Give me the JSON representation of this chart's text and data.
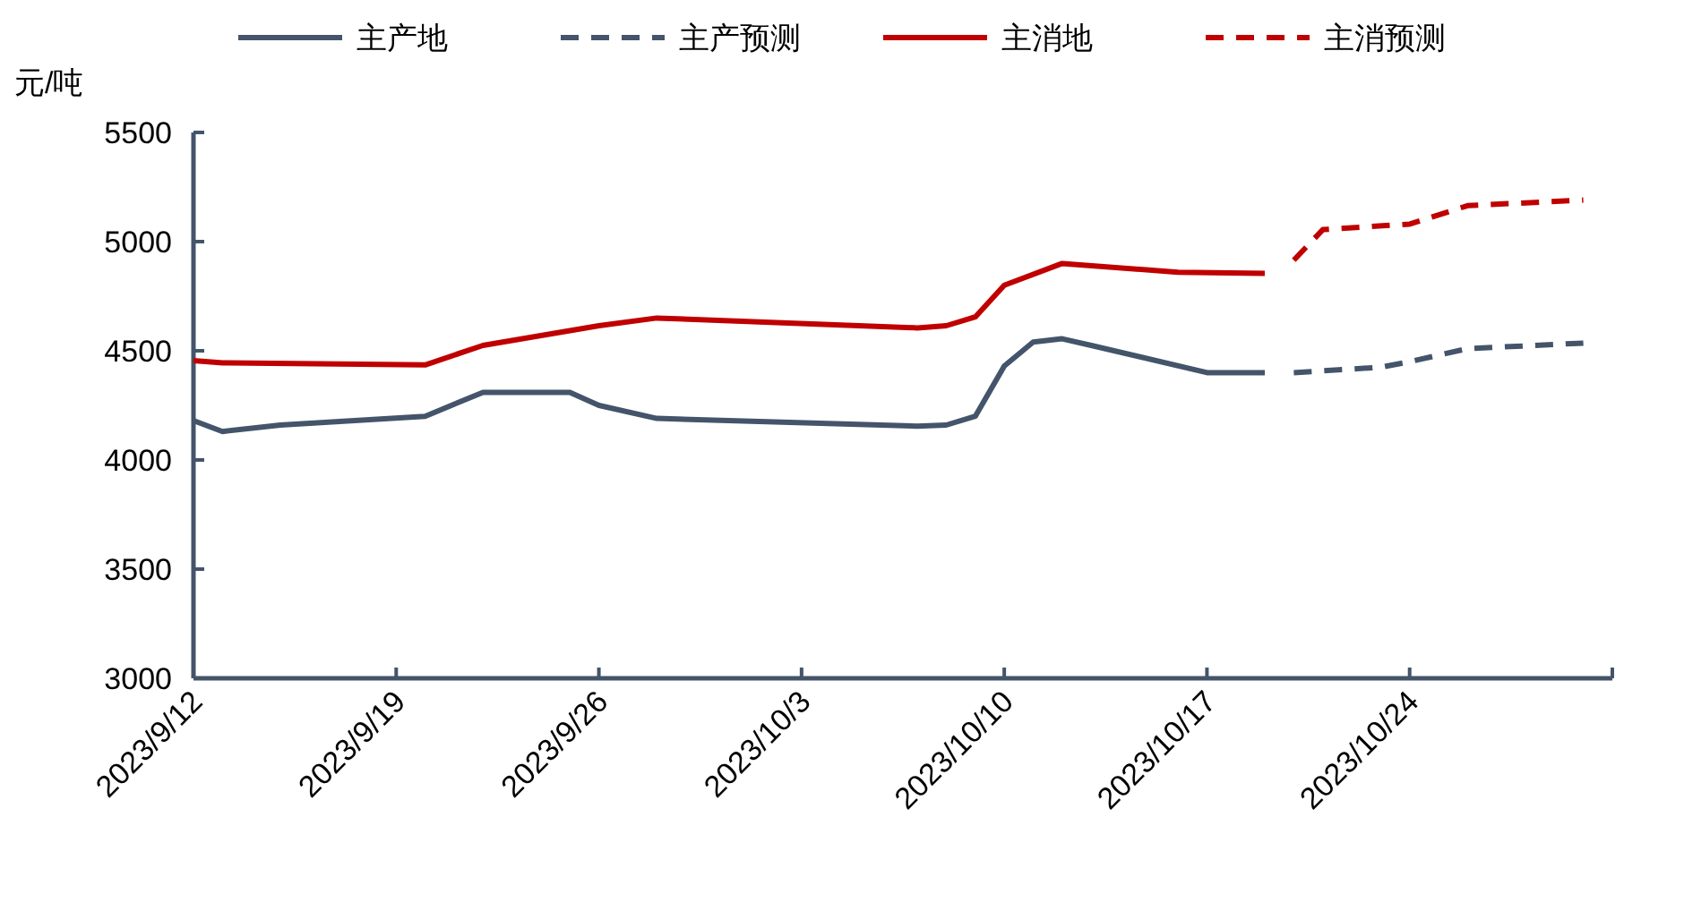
{
  "chart_data": {
    "type": "line",
    "ylabel": "元/吨",
    "legend": "top",
    "grid": false,
    "marker": "none",
    "xlim": [
      "2023-09-12",
      "2023-10-31"
    ],
    "xticks": [
      {
        "value": "2023-09-12",
        "label": "2023/9/12"
      },
      {
        "value": "2023-09-19",
        "label": "2023/9/19"
      },
      {
        "value": "2023-09-26",
        "label": "2023/9/26"
      },
      {
        "value": "2023-10-03",
        "label": "2023/10/3"
      },
      {
        "value": "2023-10-10",
        "label": "2023/10/10"
      },
      {
        "value": "2023-10-17",
        "label": "2023/10/17"
      },
      {
        "value": "2023-10-24",
        "label": "2023/10/24"
      }
    ],
    "ylim": [
      3000,
      5500
    ],
    "yticks": [
      3000,
      3500,
      4000,
      4500,
      5000,
      5500
    ],
    "series": [
      {
        "name": "主产地",
        "color": "#44546a",
        "line_style": "solid",
        "x": [
          "2023-09-12",
          "2023-09-13",
          "2023-09-15",
          "2023-09-20",
          "2023-09-22",
          "2023-09-25",
          "2023-09-26",
          "2023-09-28",
          "2023-10-07",
          "2023-10-08",
          "2023-10-09",
          "2023-10-10",
          "2023-10-11",
          "2023-10-12",
          "2023-10-13",
          "2023-10-17",
          "2023-10-19"
        ],
        "values": [
          4180,
          4130,
          4160,
          4200,
          4310,
          4310,
          4250,
          4190,
          4155,
          4160,
          4200,
          4430,
          4540,
          4555,
          4525,
          4400,
          4400
        ]
      },
      {
        "name": "主产预测",
        "color": "#44546a",
        "line_style": "dashed",
        "x": [
          "2023-10-20",
          "2023-10-23",
          "2023-10-24",
          "2023-10-26",
          "2023-10-30"
        ],
        "values": [
          4400,
          4425,
          4450,
          4510,
          4535
        ]
      },
      {
        "name": "主消地",
        "color": "#c00000",
        "line_style": "solid",
        "x": [
          "2023-09-12",
          "2023-09-13",
          "2023-09-20",
          "2023-09-22",
          "2023-09-26",
          "2023-09-28",
          "2023-10-07",
          "2023-10-08",
          "2023-10-09",
          "2023-10-10",
          "2023-10-12",
          "2023-10-16",
          "2023-10-19"
        ],
        "values": [
          4455,
          4445,
          4435,
          4525,
          4615,
          4650,
          4605,
          4615,
          4655,
          4800,
          4900,
          4860,
          4855
        ]
      },
      {
        "name": "主消预测",
        "color": "#c00000",
        "line_style": "dashed",
        "x": [
          "2023-10-20",
          "2023-10-21",
          "2023-10-24",
          "2023-10-26",
          "2023-10-30"
        ],
        "values": [
          4915,
          5055,
          5080,
          5165,
          5190
        ]
      }
    ]
  }
}
